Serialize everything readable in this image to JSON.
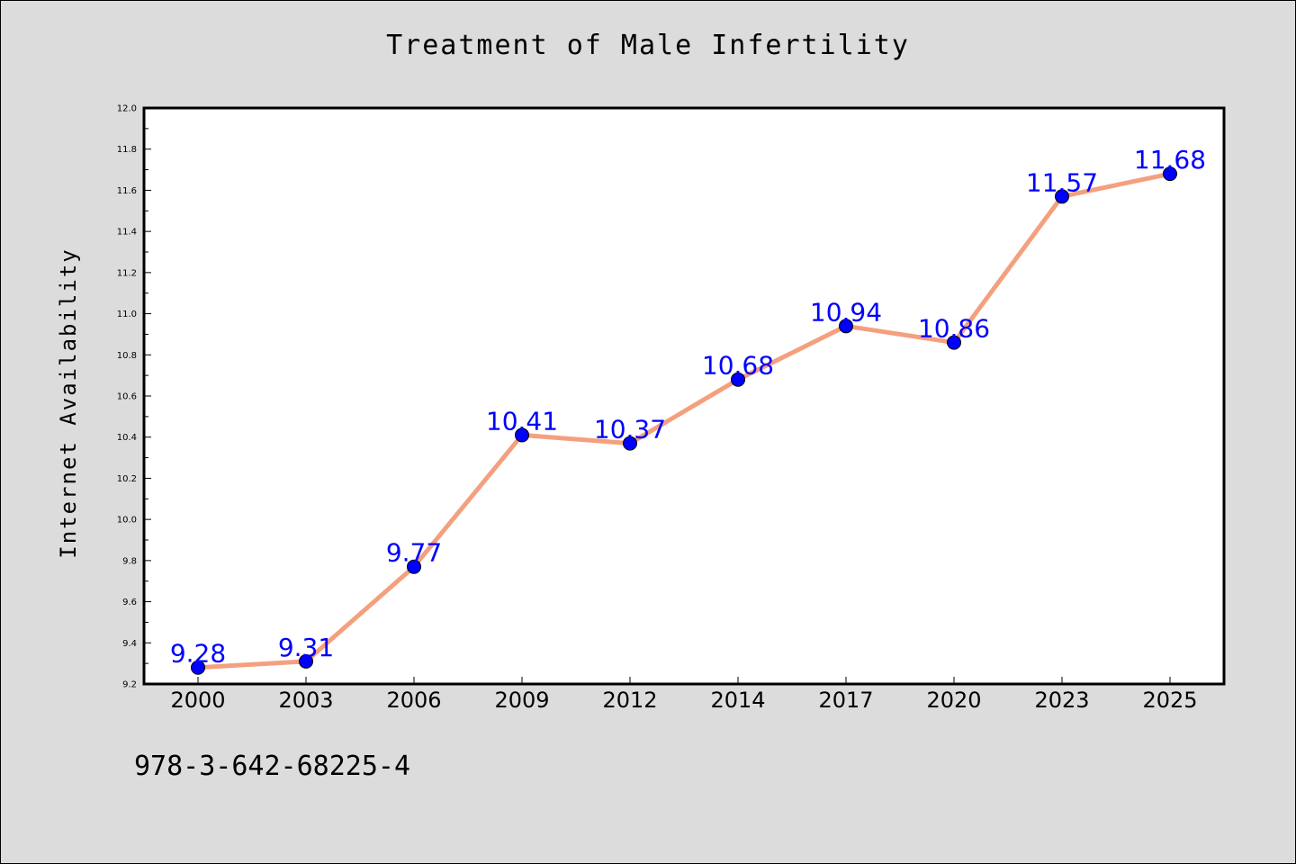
{
  "chart_data": {
    "type": "line",
    "title": "Treatment of Male Infertility",
    "xlabel": "",
    "ylabel": "Internet Availability",
    "categories": [
      "2000",
      "2003",
      "2006",
      "2009",
      "2012",
      "2014",
      "2017",
      "2020",
      "2023",
      "2025"
    ],
    "values": [
      9.28,
      9.31,
      9.77,
      10.41,
      10.37,
      10.68,
      10.94,
      10.86,
      11.57,
      11.68
    ],
    "value_labels": [
      "9.28",
      "9.31",
      "9.77",
      "10.41",
      "10.37",
      "10.68",
      "10.94",
      "10.86",
      "11.57",
      "11.68"
    ],
    "ylim": [
      9.2,
      12.0
    ],
    "yticks": [
      "9.2",
      "9.4",
      "9.6",
      "9.8",
      "10.0",
      "10.2",
      "10.4",
      "10.6",
      "10.8",
      "11.0",
      "11.2",
      "11.4",
      "11.6",
      "11.8",
      "12.0"
    ],
    "grid": false,
    "line_color": "#f4a07e",
    "marker_color": "#0000ff",
    "label_color": "#0000ff",
    "background_color": "#dcdcdc",
    "plot_background_color": "#ffffff"
  },
  "footer_text": "978-3-642-68225-4"
}
